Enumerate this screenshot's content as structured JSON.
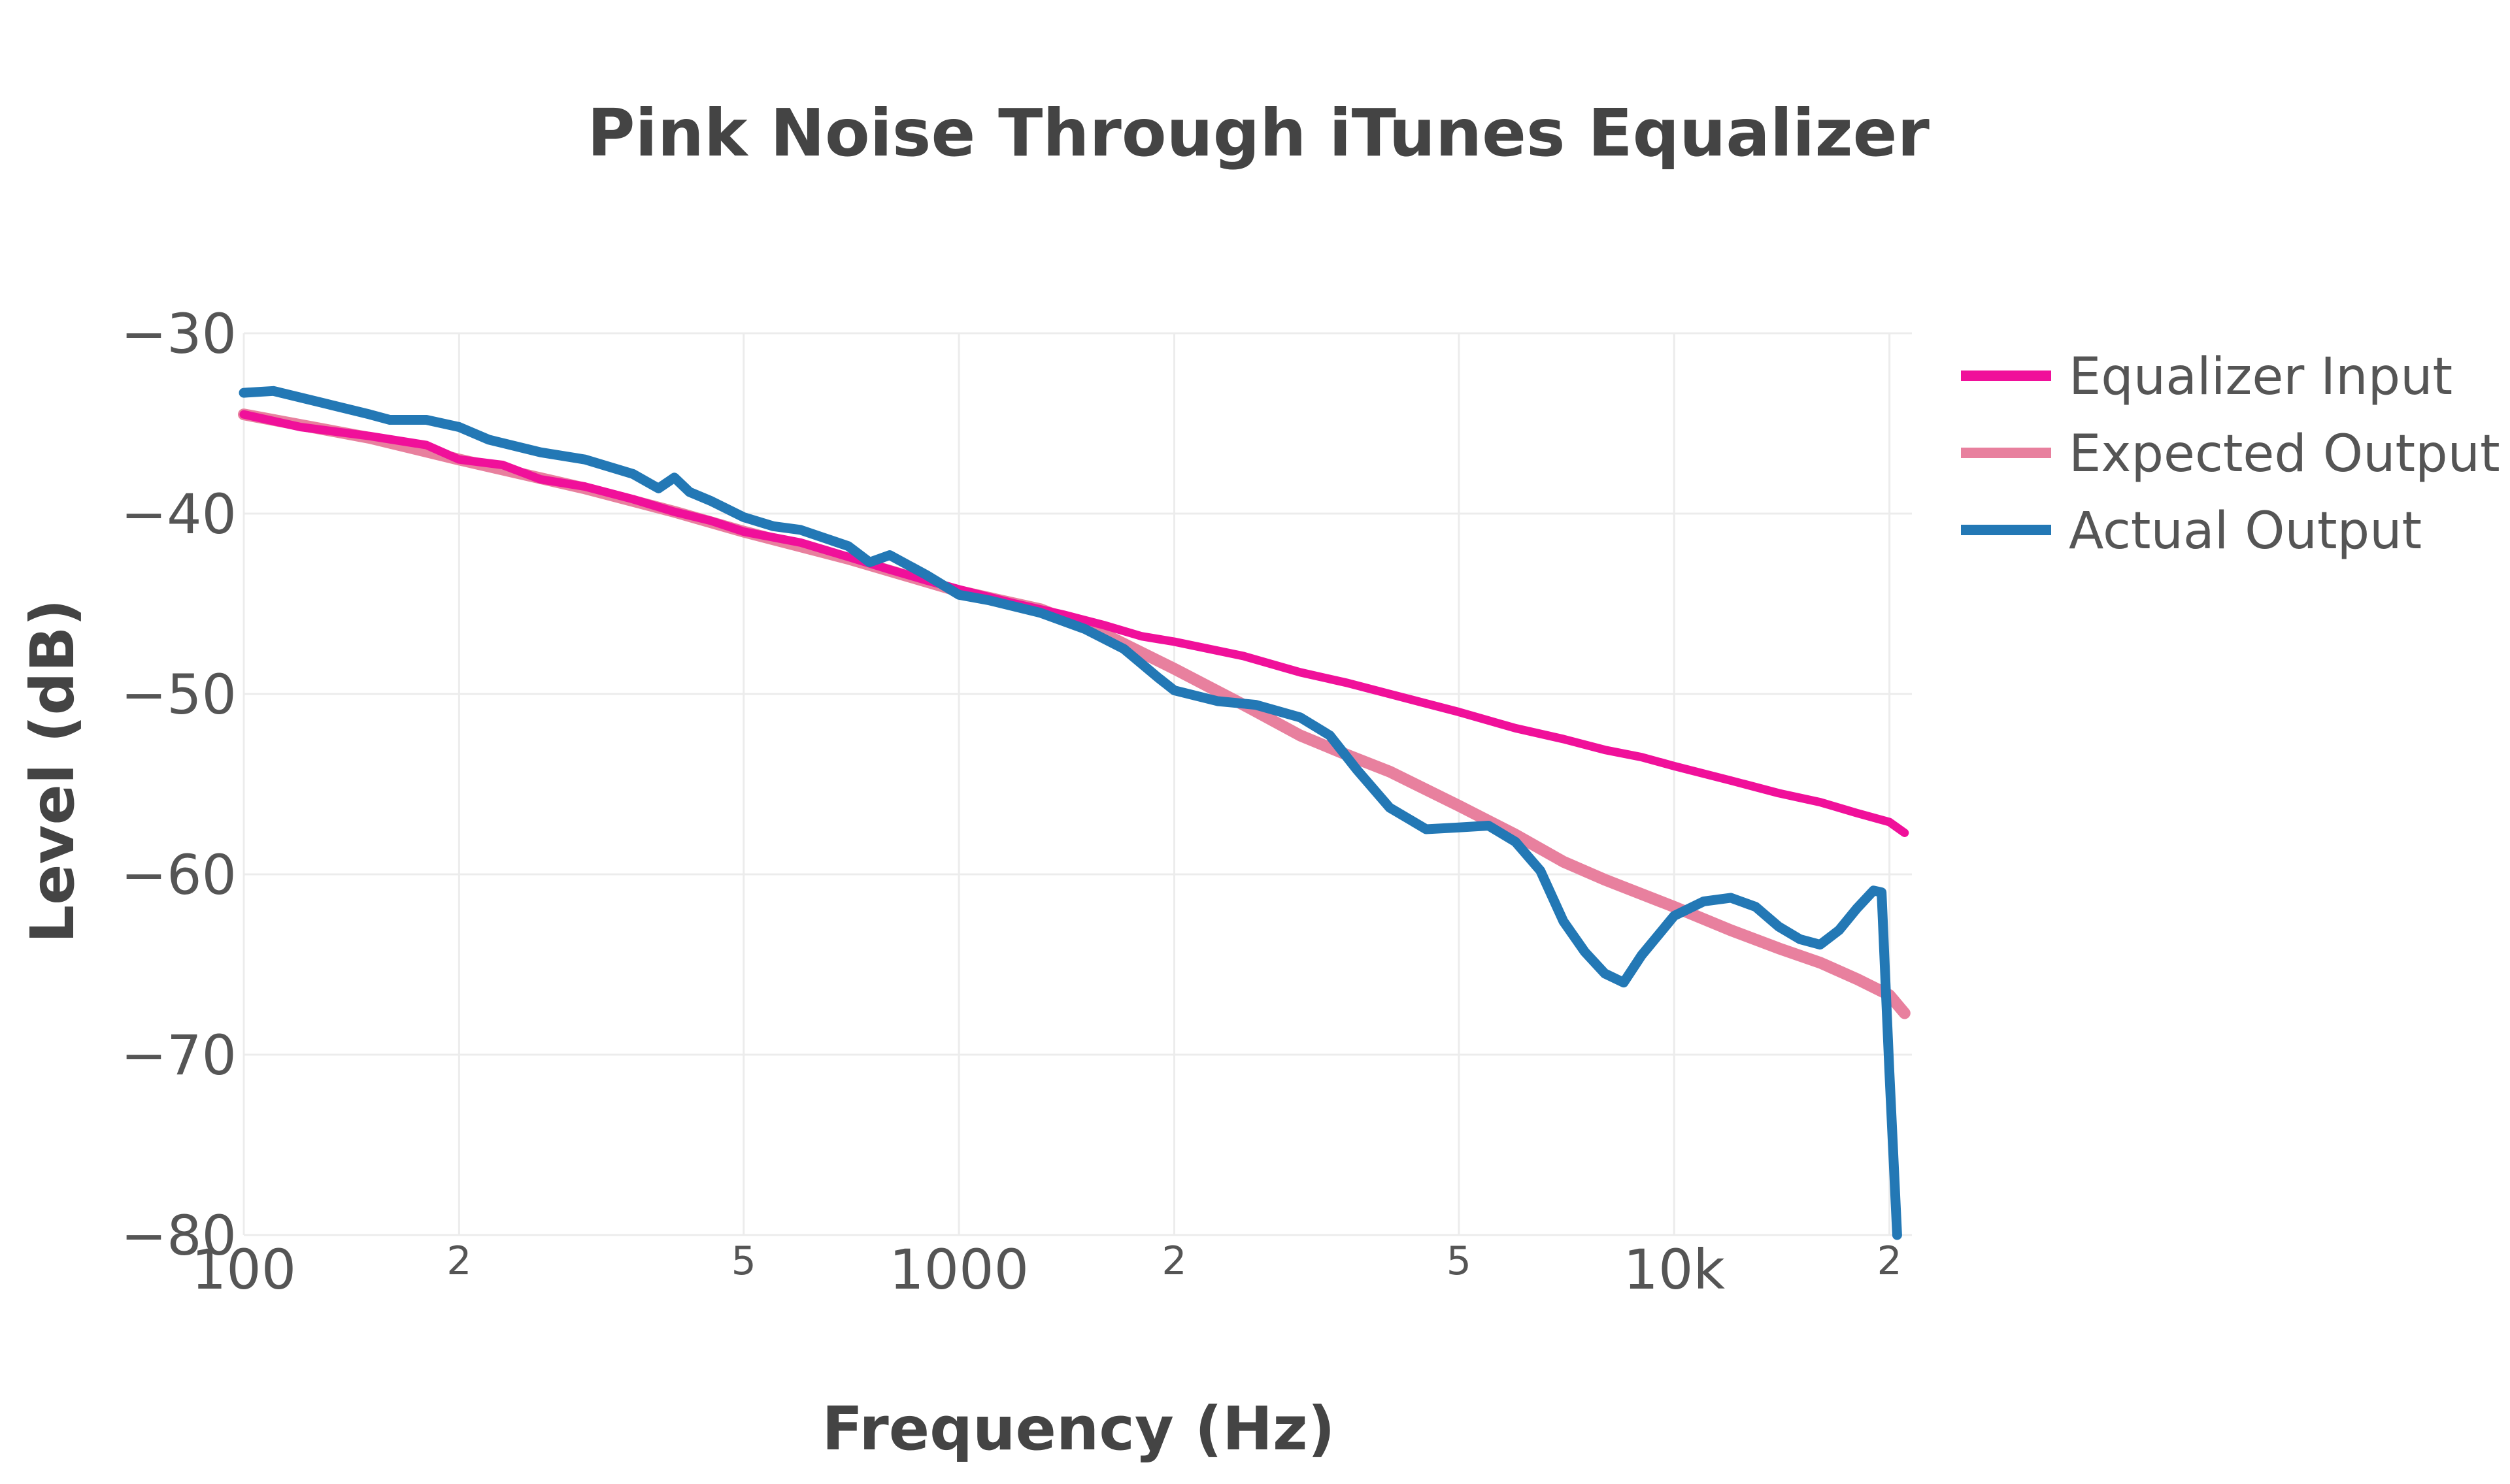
{
  "chart_data": {
    "type": "line",
    "title": "Pink Noise Through iTunes Equalizer",
    "xlabel": "Frequency (Hz)",
    "ylabel": "Level (dB)",
    "x_scale": "log",
    "xlim": [
      100,
      21000
    ],
    "ylim": [
      -80,
      -30
    ],
    "y_ticks": [
      {
        "value": -30,
        "label": "−30"
      },
      {
        "value": -40,
        "label": "−40"
      },
      {
        "value": -50,
        "label": "−50"
      },
      {
        "value": -60,
        "label": "−60"
      },
      {
        "value": -70,
        "label": "−70"
      },
      {
        "value": -80,
        "label": "−80"
      }
    ],
    "x_ticks": [
      {
        "value": 100,
        "label": "100",
        "kind": "major"
      },
      {
        "value": 200,
        "label": "2",
        "kind": "minor"
      },
      {
        "value": 500,
        "label": "5",
        "kind": "minor"
      },
      {
        "value": 1000,
        "label": "1000",
        "kind": "major"
      },
      {
        "value": 2000,
        "label": "2",
        "kind": "minor"
      },
      {
        "value": 5000,
        "label": "5",
        "kind": "minor"
      },
      {
        "value": 10000,
        "label": "10k",
        "kind": "major"
      },
      {
        "value": 20000,
        "label": "2",
        "kind": "minor"
      }
    ],
    "grid": true,
    "legend_position": "top-right",
    "series": [
      {
        "name": "Equalizer Input",
        "color": "#f0109a",
        "points": [
          [
            100,
            -34.5
          ],
          [
            120,
            -35.2
          ],
          [
            150,
            -35.7
          ],
          [
            180,
            -36.2
          ],
          [
            200,
            -37.0
          ],
          [
            230,
            -37.3
          ],
          [
            260,
            -38.1
          ],
          [
            300,
            -38.5
          ],
          [
            350,
            -39.2
          ],
          [
            400,
            -39.9
          ],
          [
            450,
            -40.4
          ],
          [
            500,
            -41.0
          ],
          [
            600,
            -41.6
          ],
          [
            700,
            -42.4
          ],
          [
            800,
            -43.1
          ],
          [
            900,
            -43.7
          ],
          [
            1000,
            -44.2
          ],
          [
            1200,
            -45.0
          ],
          [
            1400,
            -45.6
          ],
          [
            1600,
            -46.2
          ],
          [
            1800,
            -46.8
          ],
          [
            2000,
            -47.1
          ],
          [
            2500,
            -47.9
          ],
          [
            3000,
            -48.8
          ],
          [
            3500,
            -49.4
          ],
          [
            4000,
            -50.0
          ],
          [
            5000,
            -51.0
          ],
          [
            6000,
            -51.9
          ],
          [
            7000,
            -52.5
          ],
          [
            8000,
            -53.1
          ],
          [
            9000,
            -53.5
          ],
          [
            10000,
            -54.0
          ],
          [
            12000,
            -54.8
          ],
          [
            14000,
            -55.5
          ],
          [
            16000,
            -56.0
          ],
          [
            18000,
            -56.6
          ],
          [
            20000,
            -57.1
          ],
          [
            21000,
            -57.7
          ]
        ]
      },
      {
        "name": "Expected Output",
        "color": "#e8809e",
        "points": [
          [
            100,
            -34.5
          ],
          [
            150,
            -35.8
          ],
          [
            200,
            -37.0
          ],
          [
            300,
            -38.6
          ],
          [
            400,
            -39.9
          ],
          [
            500,
            -41.0
          ],
          [
            700,
            -42.5
          ],
          [
            1000,
            -44.3
          ],
          [
            1300,
            -45.3
          ],
          [
            1600,
            -46.7
          ],
          [
            2000,
            -48.6
          ],
          [
            2500,
            -50.6
          ],
          [
            3000,
            -52.3
          ],
          [
            3500,
            -53.4
          ],
          [
            4000,
            -54.3
          ],
          [
            5000,
            -56.2
          ],
          [
            6000,
            -57.8
          ],
          [
            7000,
            -59.3
          ],
          [
            8000,
            -60.3
          ],
          [
            10000,
            -61.8
          ],
          [
            12000,
            -63.1
          ],
          [
            14000,
            -64.1
          ],
          [
            16000,
            -64.9
          ],
          [
            18000,
            -65.8
          ],
          [
            20000,
            -66.7
          ],
          [
            21000,
            -67.7
          ]
        ]
      },
      {
        "name": "Actual Output",
        "color": "#2378b5",
        "points": [
          [
            100,
            -33.3
          ],
          [
            110,
            -33.2
          ],
          [
            130,
            -33.9
          ],
          [
            150,
            -34.5
          ],
          [
            160,
            -34.8
          ],
          [
            180,
            -34.8
          ],
          [
            200,
            -35.2
          ],
          [
            220,
            -35.9
          ],
          [
            260,
            -36.6
          ],
          [
            300,
            -37.0
          ],
          [
            350,
            -37.8
          ],
          [
            380,
            -38.6
          ],
          [
            400,
            -38.0
          ],
          [
            420,
            -38.8
          ],
          [
            450,
            -39.3
          ],
          [
            500,
            -40.2
          ],
          [
            550,
            -40.7
          ],
          [
            600,
            -40.9
          ],
          [
            700,
            -41.8
          ],
          [
            750,
            -42.7
          ],
          [
            800,
            -42.3
          ],
          [
            900,
            -43.4
          ],
          [
            1000,
            -44.5
          ],
          [
            1100,
            -44.8
          ],
          [
            1300,
            -45.5
          ],
          [
            1500,
            -46.4
          ],
          [
            1700,
            -47.5
          ],
          [
            1900,
            -49.1
          ],
          [
            2000,
            -49.8
          ],
          [
            2300,
            -50.4
          ],
          [
            2600,
            -50.6
          ],
          [
            3000,
            -51.3
          ],
          [
            3300,
            -52.3
          ],
          [
            3600,
            -54.2
          ],
          [
            4000,
            -56.3
          ],
          [
            4500,
            -57.5
          ],
          [
            5000,
            -57.4
          ],
          [
            5500,
            -57.3
          ],
          [
            6000,
            -58.2
          ],
          [
            6500,
            -59.8
          ],
          [
            7000,
            -62.6
          ],
          [
            7500,
            -64.3
          ],
          [
            8000,
            -65.5
          ],
          [
            8500,
            -66.0
          ],
          [
            9000,
            -64.5
          ],
          [
            10000,
            -62.3
          ],
          [
            11000,
            -61.5
          ],
          [
            12000,
            -61.3
          ],
          [
            13000,
            -61.8
          ],
          [
            14000,
            -62.9
          ],
          [
            15000,
            -63.6
          ],
          [
            16000,
            -63.9
          ],
          [
            17000,
            -63.1
          ],
          [
            18000,
            -61.9
          ],
          [
            19000,
            -60.9
          ],
          [
            19500,
            -61.0
          ],
          [
            20000,
            -71.0
          ],
          [
            20500,
            -80.0
          ]
        ]
      }
    ]
  }
}
